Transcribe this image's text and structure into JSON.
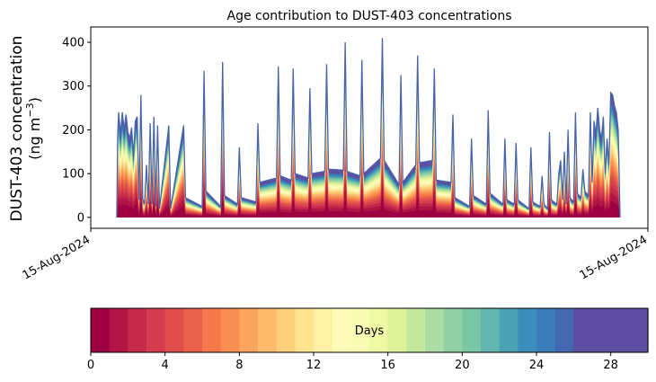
{
  "chart_data": {
    "type": "area",
    "title": "Age contribution to DUST-403 concentrations",
    "ylabel_line1": "DUST-403 concentration",
    "ylabel_unit_prefix": "(ng m",
    "ylabel_unit_exp": "−3",
    "ylabel_unit_suffix": ")",
    "xlabel": "",
    "ylim": [
      -25,
      435
    ],
    "yticks": [
      0,
      100,
      200,
      300,
      400
    ],
    "xlim": [
      0,
      300
    ],
    "xtick_labels": [
      {
        "x": 0,
        "label": "15-Aug-2024"
      },
      {
        "x": 300,
        "label": "15-Aug-2024"
      }
    ],
    "grid": false,
    "legend": "none",
    "series_note": "stacked contributions by age in days (0–30), lower layers = younger air",
    "total": [
      {
        "x": 14,
        "y": 0
      },
      {
        "x": 14.5,
        "y": 185
      },
      {
        "x": 15,
        "y": 240
      },
      {
        "x": 16,
        "y": 190
      },
      {
        "x": 17,
        "y": 240
      },
      {
        "x": 18,
        "y": 200
      },
      {
        "x": 19,
        "y": 235
      },
      {
        "x": 20,
        "y": 195
      },
      {
        "x": 21,
        "y": 180
      },
      {
        "x": 22,
        "y": 205
      },
      {
        "x": 23,
        "y": 140
      },
      {
        "x": 24,
        "y": 220
      },
      {
        "x": 25,
        "y": 230
      },
      {
        "x": 26,
        "y": 40
      },
      {
        "x": 27,
        "y": 280
      },
      {
        "x": 28,
        "y": 40
      },
      {
        "x": 29,
        "y": 35
      },
      {
        "x": 30,
        "y": 120
      },
      {
        "x": 31,
        "y": 30
      },
      {
        "x": 32,
        "y": 215
      },
      {
        "x": 33,
        "y": 30
      },
      {
        "x": 34,
        "y": 230
      },
      {
        "x": 35,
        "y": 25
      },
      {
        "x": 36,
        "y": 210
      },
      {
        "x": 37,
        "y": 20
      },
      {
        "x": 42,
        "y": 210
      },
      {
        "x": 43,
        "y": 20
      },
      {
        "x": 50,
        "y": 210
      },
      {
        "x": 51,
        "y": 45
      },
      {
        "x": 60,
        "y": 25
      },
      {
        "x": 61,
        "y": 335
      },
      {
        "x": 62,
        "y": 60
      },
      {
        "x": 70,
        "y": 25
      },
      {
        "x": 71,
        "y": 355
      },
      {
        "x": 72,
        "y": 50
      },
      {
        "x": 79,
        "y": 30
      },
      {
        "x": 80,
        "y": 160
      },
      {
        "x": 81,
        "y": 45
      },
      {
        "x": 89,
        "y": 35
      },
      {
        "x": 90,
        "y": 215
      },
      {
        "x": 91,
        "y": 80
      },
      {
        "x": 100,
        "y": 90
      },
      {
        "x": 101,
        "y": 345
      },
      {
        "x": 102,
        "y": 95
      },
      {
        "x": 108,
        "y": 85
      },
      {
        "x": 109,
        "y": 340
      },
      {
        "x": 110,
        "y": 100
      },
      {
        "x": 117,
        "y": 90
      },
      {
        "x": 118,
        "y": 295
      },
      {
        "x": 119,
        "y": 100
      },
      {
        "x": 126,
        "y": 105
      },
      {
        "x": 127,
        "y": 350
      },
      {
        "x": 128,
        "y": 110
      },
      {
        "x": 136,
        "y": 108
      },
      {
        "x": 137,
        "y": 400
      },
      {
        "x": 138,
        "y": 105
      },
      {
        "x": 145,
        "y": 95
      },
      {
        "x": 146,
        "y": 360
      },
      {
        "x": 147,
        "y": 100
      },
      {
        "x": 156,
        "y": 135
      },
      {
        "x": 157,
        "y": 410
      },
      {
        "x": 158,
        "y": 130
      },
      {
        "x": 166,
        "y": 75
      },
      {
        "x": 167,
        "y": 325
      },
      {
        "x": 168,
        "y": 80
      },
      {
        "x": 175,
        "y": 120
      },
      {
        "x": 176,
        "y": 370
      },
      {
        "x": 177,
        "y": 125
      },
      {
        "x": 184,
        "y": 130
      },
      {
        "x": 185,
        "y": 340
      },
      {
        "x": 186,
        "y": 85
      },
      {
        "x": 194,
        "y": 80
      },
      {
        "x": 195,
        "y": 235
      },
      {
        "x": 196,
        "y": 45
      },
      {
        "x": 204,
        "y": 25
      },
      {
        "x": 205,
        "y": 180
      },
      {
        "x": 206,
        "y": 50
      },
      {
        "x": 213,
        "y": 30
      },
      {
        "x": 214,
        "y": 245
      },
      {
        "x": 215,
        "y": 55
      },
      {
        "x": 222,
        "y": 30
      },
      {
        "x": 223,
        "y": 180
      },
      {
        "x": 224,
        "y": 40
      },
      {
        "x": 228,
        "y": 30
      },
      {
        "x": 229,
        "y": 170
      },
      {
        "x": 230,
        "y": 40
      },
      {
        "x": 236,
        "y": 20
      },
      {
        "x": 237,
        "y": 160
      },
      {
        "x": 238,
        "y": 35
      },
      {
        "x": 242,
        "y": 25
      },
      {
        "x": 243,
        "y": 95
      },
      {
        "x": 244,
        "y": 30
      },
      {
        "x": 246,
        "y": 20
      },
      {
        "x": 247,
        "y": 195
      },
      {
        "x": 248,
        "y": 40
      },
      {
        "x": 251,
        "y": 30
      },
      {
        "x": 252,
        "y": 100
      },
      {
        "x": 253,
        "y": 130
      },
      {
        "x": 254,
        "y": 40
      },
      {
        "x": 255,
        "y": 150
      },
      {
        "x": 256,
        "y": 30
      },
      {
        "x": 257,
        "y": 200
      },
      {
        "x": 258,
        "y": 45
      },
      {
        "x": 260,
        "y": 35
      },
      {
        "x": 261,
        "y": 240
      },
      {
        "x": 262,
        "y": 55
      },
      {
        "x": 264,
        "y": 45
      },
      {
        "x": 265,
        "y": 110
      },
      {
        "x": 266,
        "y": 60
      },
      {
        "x": 268,
        "y": 50
      },
      {
        "x": 269,
        "y": 240
      },
      {
        "x": 270,
        "y": 80
      },
      {
        "x": 271,
        "y": 220
      },
      {
        "x": 272,
        "y": 190
      },
      {
        "x": 273,
        "y": 250
      },
      {
        "x": 274,
        "y": 200
      },
      {
        "x": 275,
        "y": 180
      },
      {
        "x": 276,
        "y": 230
      },
      {
        "x": 277,
        "y": 100
      },
      {
        "x": 278,
        "y": 180
      },
      {
        "x": 279,
        "y": 120
      },
      {
        "x": 280,
        "y": 285
      },
      {
        "x": 281,
        "y": 280
      },
      {
        "x": 282,
        "y": 255
      },
      {
        "x": 283,
        "y": 240
      },
      {
        "x": 284,
        "y": 200
      },
      {
        "x": 285,
        "y": 0
      }
    ],
    "colorbar": {
      "label": "Days",
      "min": 0,
      "max": 30,
      "ticks": [
        0,
        4,
        8,
        12,
        16,
        20,
        24,
        28
      ],
      "colors": [
        "#9e0142",
        "#b11546",
        "#c52a4b",
        "#d43d4f",
        "#df4e4b",
        "#e9614a",
        "#f47a4c",
        "#f88e52",
        "#fba55e",
        "#fdbc6b",
        "#fed07e",
        "#fee391",
        "#fff0a6",
        "#fffbb8",
        "#f9fcb4",
        "#eef8a5",
        "#def29a",
        "#c4e89e",
        "#abdda4",
        "#92d1a4",
        "#7ac7a5",
        "#63b6ae",
        "#4ba2b2",
        "#3b8ebb",
        "#3a7cb8",
        "#4468af",
        "#5e4fa2",
        "#5e4fa2",
        "#5e4fa2",
        "#5e4fa2"
      ]
    }
  }
}
